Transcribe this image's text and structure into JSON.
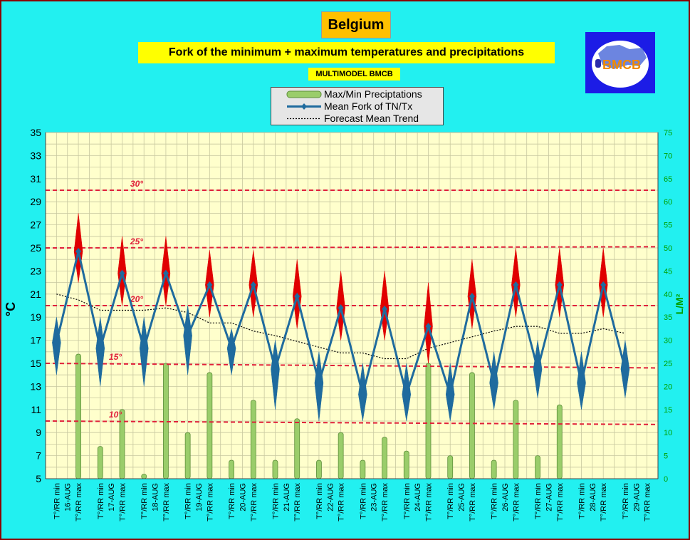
{
  "header": {
    "title": "Belgium",
    "subtitle": "Fork of the minimum + maximum temperatures and precipitations",
    "model": "MULTIMODEL BMCB",
    "logo_text": "BMCB"
  },
  "colors": {
    "background": "#22F0F0",
    "plot_background": "#FFFFCC",
    "grid": "#C8C8A0",
    "temp_line": "#1F6B9E",
    "max_diamond": "#E00000",
    "min_diamond": "#1F6B9E",
    "precip_bar": "#9ACD6A",
    "threshold_line": "#E0203A",
    "trend_line": "#000000"
  },
  "chart_data": {
    "type": "line",
    "ylabel_left": "°C",
    "ylabel_right": "L/M²",
    "ylim_left": [
      5,
      35
    ],
    "yticks_left": [
      5,
      7,
      9,
      11,
      13,
      15,
      17,
      19,
      21,
      23,
      25,
      27,
      29,
      31,
      33,
      35
    ],
    "ylim_right": [
      0,
      75
    ],
    "yticks_right": [
      0,
      5,
      10,
      15,
      20,
      25,
      30,
      35,
      40,
      45,
      50,
      55,
      60,
      65,
      70,
      75
    ],
    "grid": true,
    "legend_position": "top-center",
    "legend": [
      {
        "key": "bar",
        "label": "Max/Min Preciptations"
      },
      {
        "key": "line",
        "label": "Mean Fork of TN/Tx"
      },
      {
        "key": "trend",
        "label": "Forecast Mean Trend"
      }
    ],
    "thresholds": [
      {
        "value": 30,
        "label": "30°"
      },
      {
        "value": 25,
        "label": "25°"
      },
      {
        "value": 20,
        "label": "20°"
      },
      {
        "value": 15,
        "label": "15°"
      },
      {
        "value": 10,
        "label": "10°"
      }
    ],
    "days": [
      "16-AUG",
      "17-AUG",
      "18-AUG",
      "19-AUG",
      "20-AUG",
      "21-AUG",
      "22-AUG",
      "23-AUG",
      "24-AUG",
      "25-AUG",
      "26-AUG",
      "27-AUG",
      "28-AUG",
      "29-AUG"
    ],
    "min_label": "T°/RR min",
    "max_label": "T°/RR max",
    "tmin": [
      16.8,
      16.3,
      16.3,
      17.4,
      16.3,
      14.5,
      13.3,
      12.3,
      12.3,
      12.3,
      13.3,
      14.5,
      13.3,
      14.5
    ],
    "tmax": [
      24.7,
      22.8,
      22.8,
      21.8,
      21.8,
      20.8,
      19.8,
      19.7,
      18.2,
      20.8,
      21.8,
      21.8,
      21.8
    ],
    "tmax_spread": [
      28.0,
      26.0,
      26.0,
      24.8,
      24.8,
      24.0,
      23.0,
      23.0,
      22.0,
      24.0,
      25.0,
      25.0,
      25.0
    ],
    "tmax_low": [
      22.0,
      20.0,
      20.0,
      19.0,
      19.0,
      18.0,
      17.0,
      17.0,
      15.0,
      18.0,
      19.0,
      19.0,
      19.0
    ],
    "tmin_high": [
      19.0,
      19.0,
      19.0,
      20.0,
      18.0,
      17.0,
      16.0,
      15.0,
      15.0,
      15.0,
      16.0,
      17.0,
      16.0,
      17.0
    ],
    "tmin_low": [
      14.0,
      13.0,
      13.0,
      14.0,
      14.0,
      11.0,
      10.0,
      10.0,
      10.0,
      10.0,
      11.0,
      12.0,
      11.0,
      12.0
    ],
    "trend_x": [
      1,
      2,
      3,
      4,
      5,
      6,
      7,
      8,
      9,
      10,
      11,
      12,
      13,
      14,
      15,
      16,
      17,
      18,
      19,
      20,
      21,
      22,
      23,
      24,
      25,
      26,
      27
    ],
    "trend_y": [
      21.0,
      20.5,
      19.6,
      19.6,
      19.6,
      19.8,
      19.4,
      18.5,
      18.5,
      17.8,
      17.4,
      16.9,
      16.4,
      15.9,
      15.9,
      15.4,
      15.4,
      16.3,
      16.8,
      17.3,
      17.8,
      18.2,
      18.2,
      17.6,
      17.6,
      18.0,
      17.6
    ],
    "precip": [
      27,
      7,
      15,
      1,
      25,
      10,
      23,
      4,
      17,
      4,
      13,
      4,
      10,
      4,
      9,
      6,
      25,
      5,
      23,
      4,
      17,
      5,
      16
    ]
  }
}
